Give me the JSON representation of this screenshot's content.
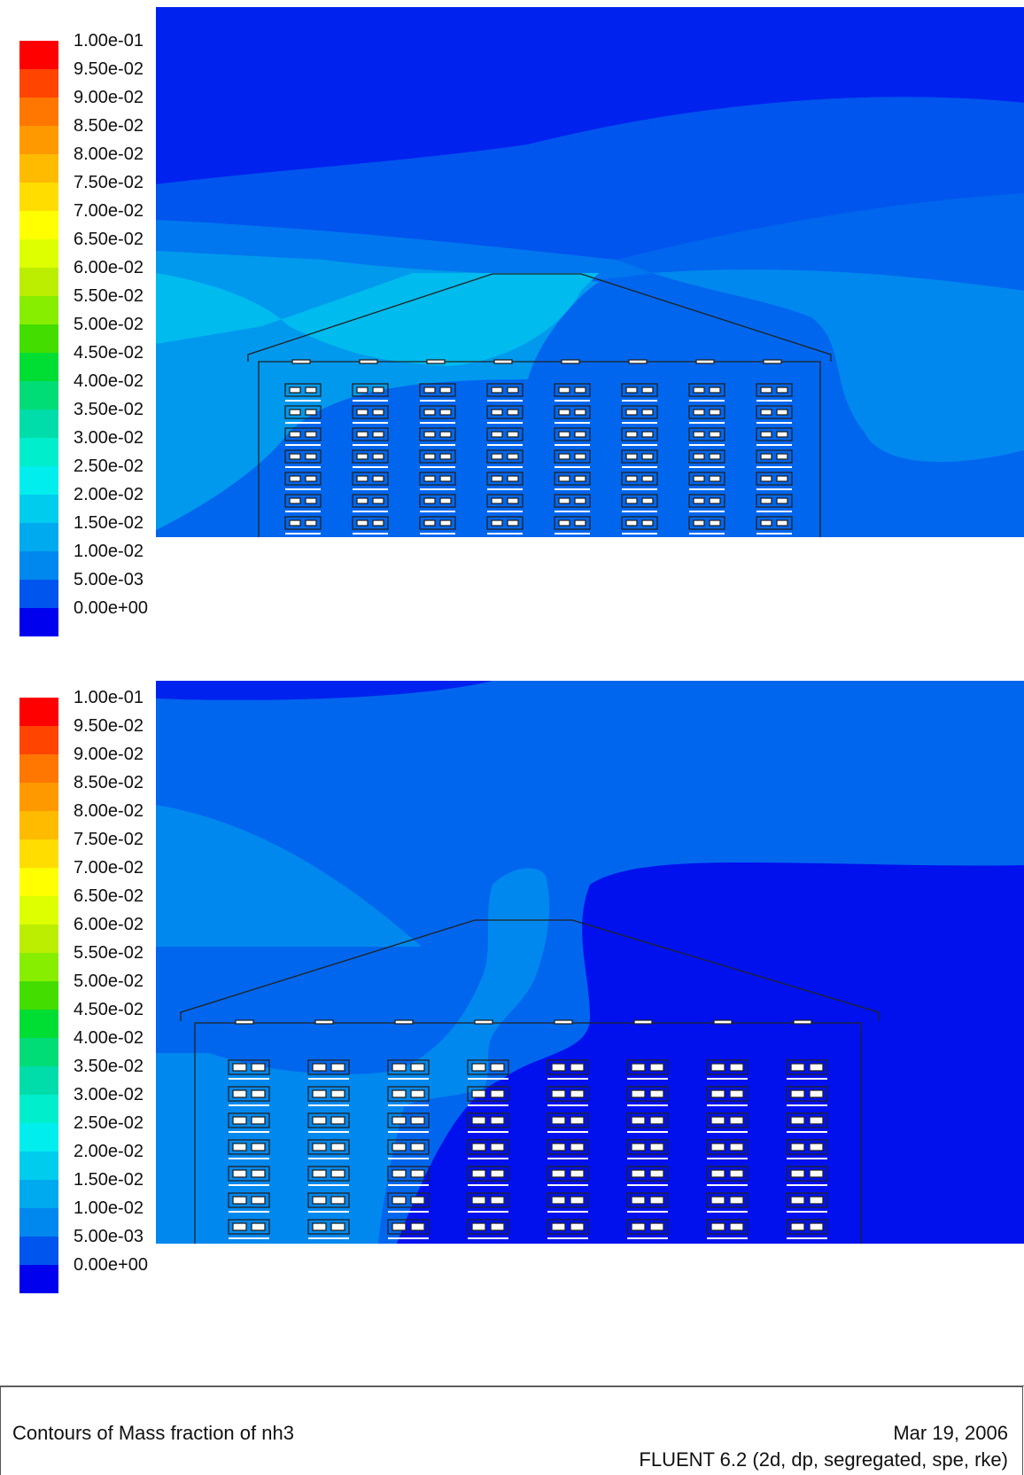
{
  "chart_data": [
    {
      "type": "heatmap",
      "colorbar": {
        "labels": [
          "1.00e-01",
          "9.50e-02",
          "9.00e-02",
          "8.50e-02",
          "8.00e-02",
          "7.50e-02",
          "7.00e-02",
          "6.50e-02",
          "6.00e-02",
          "5.50e-02",
          "5.00e-02",
          "4.50e-02",
          "4.00e-02",
          "3.50e-02",
          "3.00e-02",
          "2.50e-02",
          "2.00e-02",
          "1.50e-02",
          "1.00e-02",
          "5.00e-03",
          "0.00e+00"
        ],
        "colors": [
          "#ff0000",
          "#ff4400",
          "#ff7700",
          "#ff9900",
          "#ffbb00",
          "#ffdd00",
          "#ffff00",
          "#ddff00",
          "#bbee00",
          "#88ee00",
          "#44dd00",
          "#00dd33",
          "#00dd77",
          "#00ddaa",
          "#00eecc",
          "#00eeee",
          "#00ccee",
          "#00aaee",
          "#0088ee",
          "#0055ee",
          "#0000ee"
        ],
        "vmin": 0.0,
        "vmax": 0.1
      },
      "building": {
        "units_per_column": 7,
        "columns": 8
      }
    },
    {
      "type": "heatmap",
      "colorbar": {
        "labels": [
          "1.00e-01",
          "9.50e-02",
          "9.00e-02",
          "8.50e-02",
          "8.00e-02",
          "7.50e-02",
          "7.00e-02",
          "6.50e-02",
          "6.00e-02",
          "5.50e-02",
          "5.00e-02",
          "4.50e-02",
          "4.00e-02",
          "3.50e-02",
          "3.00e-02",
          "2.50e-02",
          "2.00e-02",
          "1.50e-02",
          "1.00e-02",
          "5.00e-03",
          "0.00e+00"
        ],
        "colors": [
          "#ff0000",
          "#ff4400",
          "#ff7700",
          "#ff9900",
          "#ffbb00",
          "#ffdd00",
          "#ffff00",
          "#ddff00",
          "#bbee00",
          "#88ee00",
          "#44dd00",
          "#00dd33",
          "#00dd77",
          "#00ddaa",
          "#00eecc",
          "#00eeee",
          "#00ccee",
          "#00aaee",
          "#0088ee",
          "#0055ee",
          "#0000ee"
        ],
        "vmin": 0.0,
        "vmax": 0.1
      },
      "building": {
        "units_per_column": 7,
        "columns": 8
      }
    }
  ],
  "footer": {
    "title": "Contours of Mass fraction of nh3",
    "date": "Mar 19, 2006",
    "solver": "FLUENT 6.2 (2d, dp, segregated, spe, rke)"
  }
}
